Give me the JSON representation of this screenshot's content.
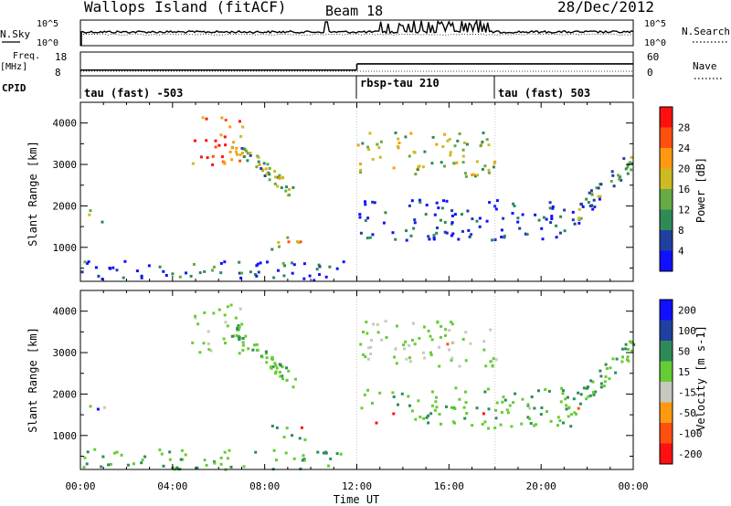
{
  "header": {
    "title": "Wallops Island (fitACF)",
    "beam": "Beam 18",
    "date": "28/Dec/2012"
  },
  "sky_panel": {
    "left_label": "N.Sky",
    "right_label": "N.Search",
    "left_ticks": [
      "10^5",
      "10^0"
    ],
    "right_ticks": [
      "10^5",
      "10^0"
    ]
  },
  "freq_panel": {
    "left_label": "Freq.",
    "left_unit": "[MHz]",
    "right_label": "Nave",
    "left_ticks": [
      "18",
      "8"
    ],
    "right_ticks": [
      "60",
      "0"
    ]
  },
  "cpid_panel": {
    "label": "CPID",
    "segments": [
      "tau (fast) -503",
      "rbsp-tau 210",
      "tau (fast) 503"
    ]
  },
  "x_axis": {
    "label": "Time UT",
    "ticks": [
      "00:00",
      "04:00",
      "08:00",
      "12:00",
      "16:00",
      "20:00",
      "00:00"
    ]
  },
  "power_panel": {
    "ylabel": "Slant Range [km]",
    "y_ticks": [
      "1000",
      "2000",
      "3000",
      "4000"
    ],
    "colorbar_label": "Power [dB]",
    "colorbar_ticks": [
      "4",
      "8",
      "12",
      "16",
      "20",
      "24",
      "28"
    ],
    "colors": [
      "#1010ff",
      "#2040a0",
      "#2e8b57",
      "#66aa44",
      "#ccbb22",
      "#ff9a10",
      "#ff5010",
      "#ff1010"
    ]
  },
  "velocity_panel": {
    "ylabel": "Slant Range [km]",
    "y_ticks": [
      "1000",
      "2000",
      "3000",
      "4000"
    ],
    "colorbar_label": "Velocity [m s-1]",
    "colorbar_ticks": [
      "200",
      "100",
      "50",
      "15",
      "-15",
      "-50",
      "-100",
      "-200"
    ],
    "colors": [
      "#1010ff",
      "#2040a0",
      "#2e8b57",
      "#66cc33",
      "#c8c8c0",
      "#ff9a10",
      "#ff5010",
      "#ff1010"
    ]
  },
  "chart_data": {
    "type": "heatmap",
    "title": "Wallops Island (fitACF)",
    "xlabel": "Time UT",
    "ylabel": "Slant Range [km]",
    "xlim_hours": [
      0,
      24
    ],
    "ylim_km": [
      180,
      4500
    ],
    "cpid_boundaries_hours": [
      12.0,
      18.0
    ],
    "frequency_steps_mhz": [
      {
        "from_hours": 0,
        "to_hours": 12,
        "value": 10.5
      },
      {
        "from_hours": 12,
        "to_hours": 24,
        "value": 14.5
      }
    ],
    "echo_regions": [
      {
        "name": "near-range band",
        "t_start_hours": 0,
        "t_end_hours": 11.5,
        "range_km": [
          200,
          700
        ],
        "power_db": 26,
        "velocity": -15
      },
      {
        "name": "near-range arc",
        "t_start_hours": 0.3,
        "t_end_hours": 1,
        "range_km": [
          1600,
          2000
        ],
        "power_db": 20,
        "velocity": 0
      },
      {
        "name": "evening descending band",
        "t_start_hours": 6.5,
        "t_end_hours": 9.3,
        "range_km": [
          2100,
          3700
        ],
        "power_db": 18,
        "velocity": -10
      },
      {
        "name": "scattered high-range echoes",
        "t_start_hours": 4.8,
        "t_end_hours": 7,
        "range_km": [
          3000,
          4200
        ],
        "power_db": 6,
        "velocity": 0
      },
      {
        "name": "mid-range patch",
        "t_start_hours": 8.2,
        "t_end_hours": 10,
        "range_km": [
          900,
          1300
        ],
        "power_db": 14,
        "velocity": -10
      },
      {
        "name": "night main band",
        "t_start_hours": 12,
        "t_end_hours": 21.3,
        "range_km": [
          1200,
          2200
        ],
        "power_db": 28,
        "velocity": -10
      },
      {
        "name": "night upper band",
        "t_start_hours": 12,
        "t_end_hours": 18,
        "range_km": [
          2700,
          3800
        ],
        "power_db": 16,
        "velocity": 10
      },
      {
        "name": "morning rising band",
        "t_start_hours": 21.3,
        "t_end_hours": 24,
        "range_km": [
          1700,
          3300
        ],
        "power_db": 22,
        "velocity": -10
      }
    ]
  }
}
